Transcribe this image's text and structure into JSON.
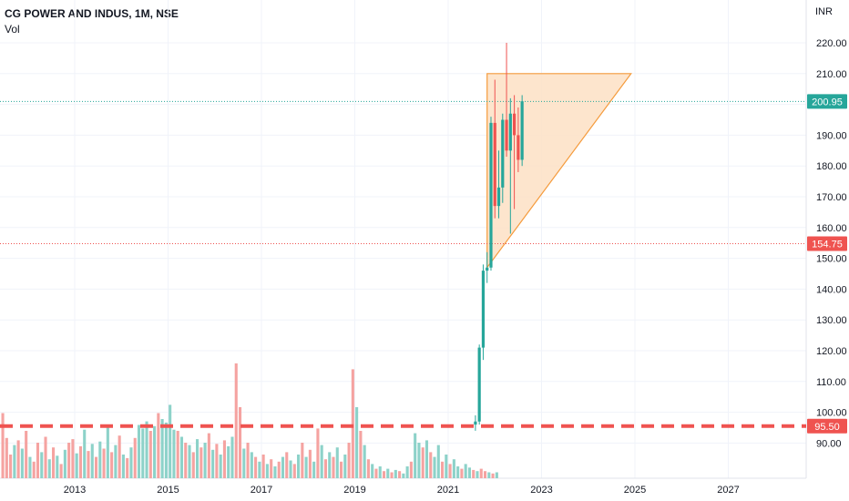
{
  "header": {
    "title": "CG POWER AND INDUS, 1M, NSE",
    "volume_label": "Vol",
    "currency": "INR"
  },
  "colors": {
    "up": "#26a69a",
    "down": "#ef5350",
    "up_volume": "#8dd2c9",
    "down_volume": "#f5a3a1",
    "triangle_fill": "#fde1c4",
    "triangle_stroke": "#f59b3c",
    "current_price_line": "#26a69a",
    "support_line": "#ef5350"
  },
  "chart_data": {
    "type": "candlestick",
    "x_axis": {
      "ticks": [
        "2013",
        "2015",
        "2017",
        "2019",
        "2021",
        "2023",
        "2025",
        "2027"
      ]
    },
    "y_axis": {
      "ticks": [
        "220.00",
        "210.00",
        "200.00",
        "190.00",
        "180.00",
        "170.00",
        "160.00",
        "150.00",
        "140.00",
        "130.00",
        "120.00",
        "110.00",
        "100.00",
        "90.00"
      ],
      "range": [
        86,
        225
      ]
    },
    "candles": [
      {
        "date": "2021-08",
        "o": 96,
        "h": 99,
        "l": 94,
        "c": 97
      },
      {
        "date": "2021-09",
        "o": 97,
        "h": 122,
        "l": 96,
        "c": 121
      },
      {
        "date": "2021-10",
        "o": 121,
        "h": 148,
        "l": 117,
        "c": 146
      },
      {
        "date": "2021-11",
        "o": 146,
        "h": 152,
        "l": 142,
        "c": 147
      },
      {
        "date": "2021-12",
        "o": 147,
        "h": 196,
        "l": 146,
        "c": 194
      },
      {
        "date": "2022-01",
        "o": 194,
        "h": 208,
        "l": 163,
        "c": 167
      },
      {
        "date": "2022-02",
        "o": 167,
        "h": 185,
        "l": 163,
        "c": 173
      },
      {
        "date": "2022-03",
        "o": 173,
        "h": 197,
        "l": 168,
        "c": 195
      },
      {
        "date": "2022-04",
        "o": 195,
        "h": 220,
        "l": 183,
        "c": 185
      },
      {
        "date": "2022-05",
        "o": 185,
        "h": 202,
        "l": 158,
        "c": 197
      },
      {
        "date": "2022-06",
        "o": 197,
        "h": 203,
        "l": 166,
        "c": 190
      },
      {
        "date": "2022-07",
        "o": 190,
        "h": 199,
        "l": 178,
        "c": 182
      },
      {
        "date": "2022-08",
        "o": 182,
        "h": 203,
        "l": 180,
        "c": 201
      }
    ],
    "volume_bars": [
      {
        "h": 0.55,
        "up": false
      },
      {
        "h": 0.34,
        "up": false
      },
      {
        "h": 0.2,
        "up": false
      },
      {
        "h": 0.28,
        "up": true
      },
      {
        "h": 0.32,
        "up": false
      },
      {
        "h": 0.25,
        "up": true
      },
      {
        "h": 0.4,
        "up": false
      },
      {
        "h": 0.18,
        "up": true
      },
      {
        "h": 0.14,
        "up": false
      },
      {
        "h": 0.3,
        "up": false
      },
      {
        "h": 0.22,
        "up": true
      },
      {
        "h": 0.35,
        "up": false
      },
      {
        "h": 0.16,
        "up": true
      },
      {
        "h": 0.26,
        "up": false
      },
      {
        "h": 0.19,
        "up": true
      },
      {
        "h": 0.12,
        "up": false
      },
      {
        "h": 0.24,
        "up": true
      },
      {
        "h": 0.3,
        "up": false
      },
      {
        "h": 0.33,
        "up": false
      },
      {
        "h": 0.21,
        "up": true
      },
      {
        "h": 0.27,
        "up": false
      },
      {
        "h": 0.41,
        "up": true
      },
      {
        "h": 0.23,
        "up": false
      },
      {
        "h": 0.29,
        "up": true
      },
      {
        "h": 0.18,
        "up": false
      },
      {
        "h": 0.31,
        "up": true
      },
      {
        "h": 0.25,
        "up": false
      },
      {
        "h": 0.45,
        "up": true
      },
      {
        "h": 0.22,
        "up": false
      },
      {
        "h": 0.28,
        "up": true
      },
      {
        "h": 0.36,
        "up": false
      },
      {
        "h": 0.2,
        "up": true
      },
      {
        "h": 0.17,
        "up": false
      },
      {
        "h": 0.26,
        "up": true
      },
      {
        "h": 0.34,
        "up": false
      },
      {
        "h": 0.45,
        "up": true
      },
      {
        "h": 0.42,
        "up": true
      },
      {
        "h": 0.48,
        "up": true
      },
      {
        "h": 0.4,
        "up": false
      },
      {
        "h": 0.44,
        "up": true
      },
      {
        "h": 0.55,
        "up": false
      },
      {
        "h": 0.5,
        "up": true
      },
      {
        "h": 0.47,
        "up": true
      },
      {
        "h": 0.62,
        "up": true
      },
      {
        "h": 0.41,
        "up": true
      },
      {
        "h": 0.4,
        "up": false
      },
      {
        "h": 0.35,
        "up": true
      },
      {
        "h": 0.3,
        "up": false
      },
      {
        "h": 0.28,
        "up": true
      },
      {
        "h": 0.22,
        "up": false
      },
      {
        "h": 0.33,
        "up": true
      },
      {
        "h": 0.26,
        "up": false
      },
      {
        "h": 0.3,
        "up": true
      },
      {
        "h": 0.38,
        "up": false
      },
      {
        "h": 0.24,
        "up": true
      },
      {
        "h": 0.29,
        "up": false
      },
      {
        "h": 0.2,
        "up": true
      },
      {
        "h": 0.32,
        "up": false
      },
      {
        "h": 0.27,
        "up": true
      },
      {
        "h": 0.35,
        "up": true
      },
      {
        "h": 0.97,
        "up": false
      },
      {
        "h": 0.6,
        "up": false
      },
      {
        "h": 0.25,
        "up": true
      },
      {
        "h": 0.3,
        "up": false
      },
      {
        "h": 0.22,
        "up": true
      },
      {
        "h": 0.18,
        "up": false
      },
      {
        "h": 0.14,
        "up": true
      },
      {
        "h": 0.2,
        "up": false
      },
      {
        "h": 0.12,
        "up": true
      },
      {
        "h": 0.16,
        "up": false
      },
      {
        "h": 0.1,
        "up": true
      },
      {
        "h": 0.14,
        "up": false
      },
      {
        "h": 0.18,
        "up": true
      },
      {
        "h": 0.22,
        "up": false
      },
      {
        "h": 0.15,
        "up": true
      },
      {
        "h": 0.12,
        "up": false
      },
      {
        "h": 0.2,
        "up": true
      },
      {
        "h": 0.3,
        "up": false
      },
      {
        "h": 0.18,
        "up": true
      },
      {
        "h": 0.24,
        "up": false
      },
      {
        "h": 0.14,
        "up": true
      },
      {
        "h": 0.42,
        "up": false
      },
      {
        "h": 0.28,
        "up": true
      },
      {
        "h": 0.16,
        "up": false
      },
      {
        "h": 0.22,
        "up": true
      },
      {
        "h": 0.18,
        "up": false
      },
      {
        "h": 0.26,
        "up": true
      },
      {
        "h": 0.14,
        "up": false
      },
      {
        "h": 0.2,
        "up": true
      },
      {
        "h": 0.3,
        "up": false
      },
      {
        "h": 0.92,
        "up": false
      },
      {
        "h": 0.6,
        "up": true
      },
      {
        "h": 0.4,
        "up": false
      },
      {
        "h": 0.28,
        "up": true
      },
      {
        "h": 0.16,
        "up": false
      },
      {
        "h": 0.12,
        "up": true
      },
      {
        "h": 0.08,
        "up": false
      },
      {
        "h": 0.1,
        "up": true
      },
      {
        "h": 0.06,
        "up": false
      },
      {
        "h": 0.08,
        "up": true
      },
      {
        "h": 0.05,
        "up": false
      },
      {
        "h": 0.07,
        "up": true
      },
      {
        "h": 0.06,
        "up": false
      },
      {
        "h": 0.04,
        "up": true
      },
      {
        "h": 0.1,
        "up": true
      },
      {
        "h": 0.14,
        "up": false
      },
      {
        "h": 0.38,
        "up": true
      },
      {
        "h": 0.3,
        "up": true
      },
      {
        "h": 0.26,
        "up": false
      },
      {
        "h": 0.32,
        "up": true
      },
      {
        "h": 0.22,
        "up": false
      },
      {
        "h": 0.18,
        "up": true
      },
      {
        "h": 0.28,
        "up": true
      },
      {
        "h": 0.14,
        "up": false
      },
      {
        "h": 0.2,
        "up": true
      },
      {
        "h": 0.12,
        "up": false
      },
      {
        "h": 0.16,
        "up": true
      },
      {
        "h": 0.1,
        "up": true
      },
      {
        "h": 0.08,
        "up": false
      },
      {
        "h": 0.12,
        "up": true
      },
      {
        "h": 0.09,
        "up": true
      },
      {
        "h": 0.07,
        "up": false
      },
      {
        "h": 0.06,
        "up": true
      },
      {
        "h": 0.08,
        "up": false
      },
      {
        "h": 0.06,
        "up": false
      },
      {
        "h": 0.05,
        "up": true
      },
      {
        "h": 0.04,
        "up": false
      },
      {
        "h": 0.05,
        "up": true
      }
    ],
    "triangle": {
      "points": [
        {
          "date": "2021-11",
          "price": 210
        },
        {
          "date": "2024-12",
          "price": 210
        },
        {
          "date": "2021-11",
          "price": 147
        }
      ]
    },
    "price_lines": [
      {
        "label": "200.95",
        "price": 200.95,
        "style": "dotted",
        "color": "#26a69a"
      },
      {
        "label": "154.75",
        "price": 154.75,
        "style": "dotted",
        "color": "#ef5350"
      },
      {
        "label": "95.50",
        "price": 95.5,
        "style": "dashed",
        "color": "#ef5350"
      }
    ]
  }
}
